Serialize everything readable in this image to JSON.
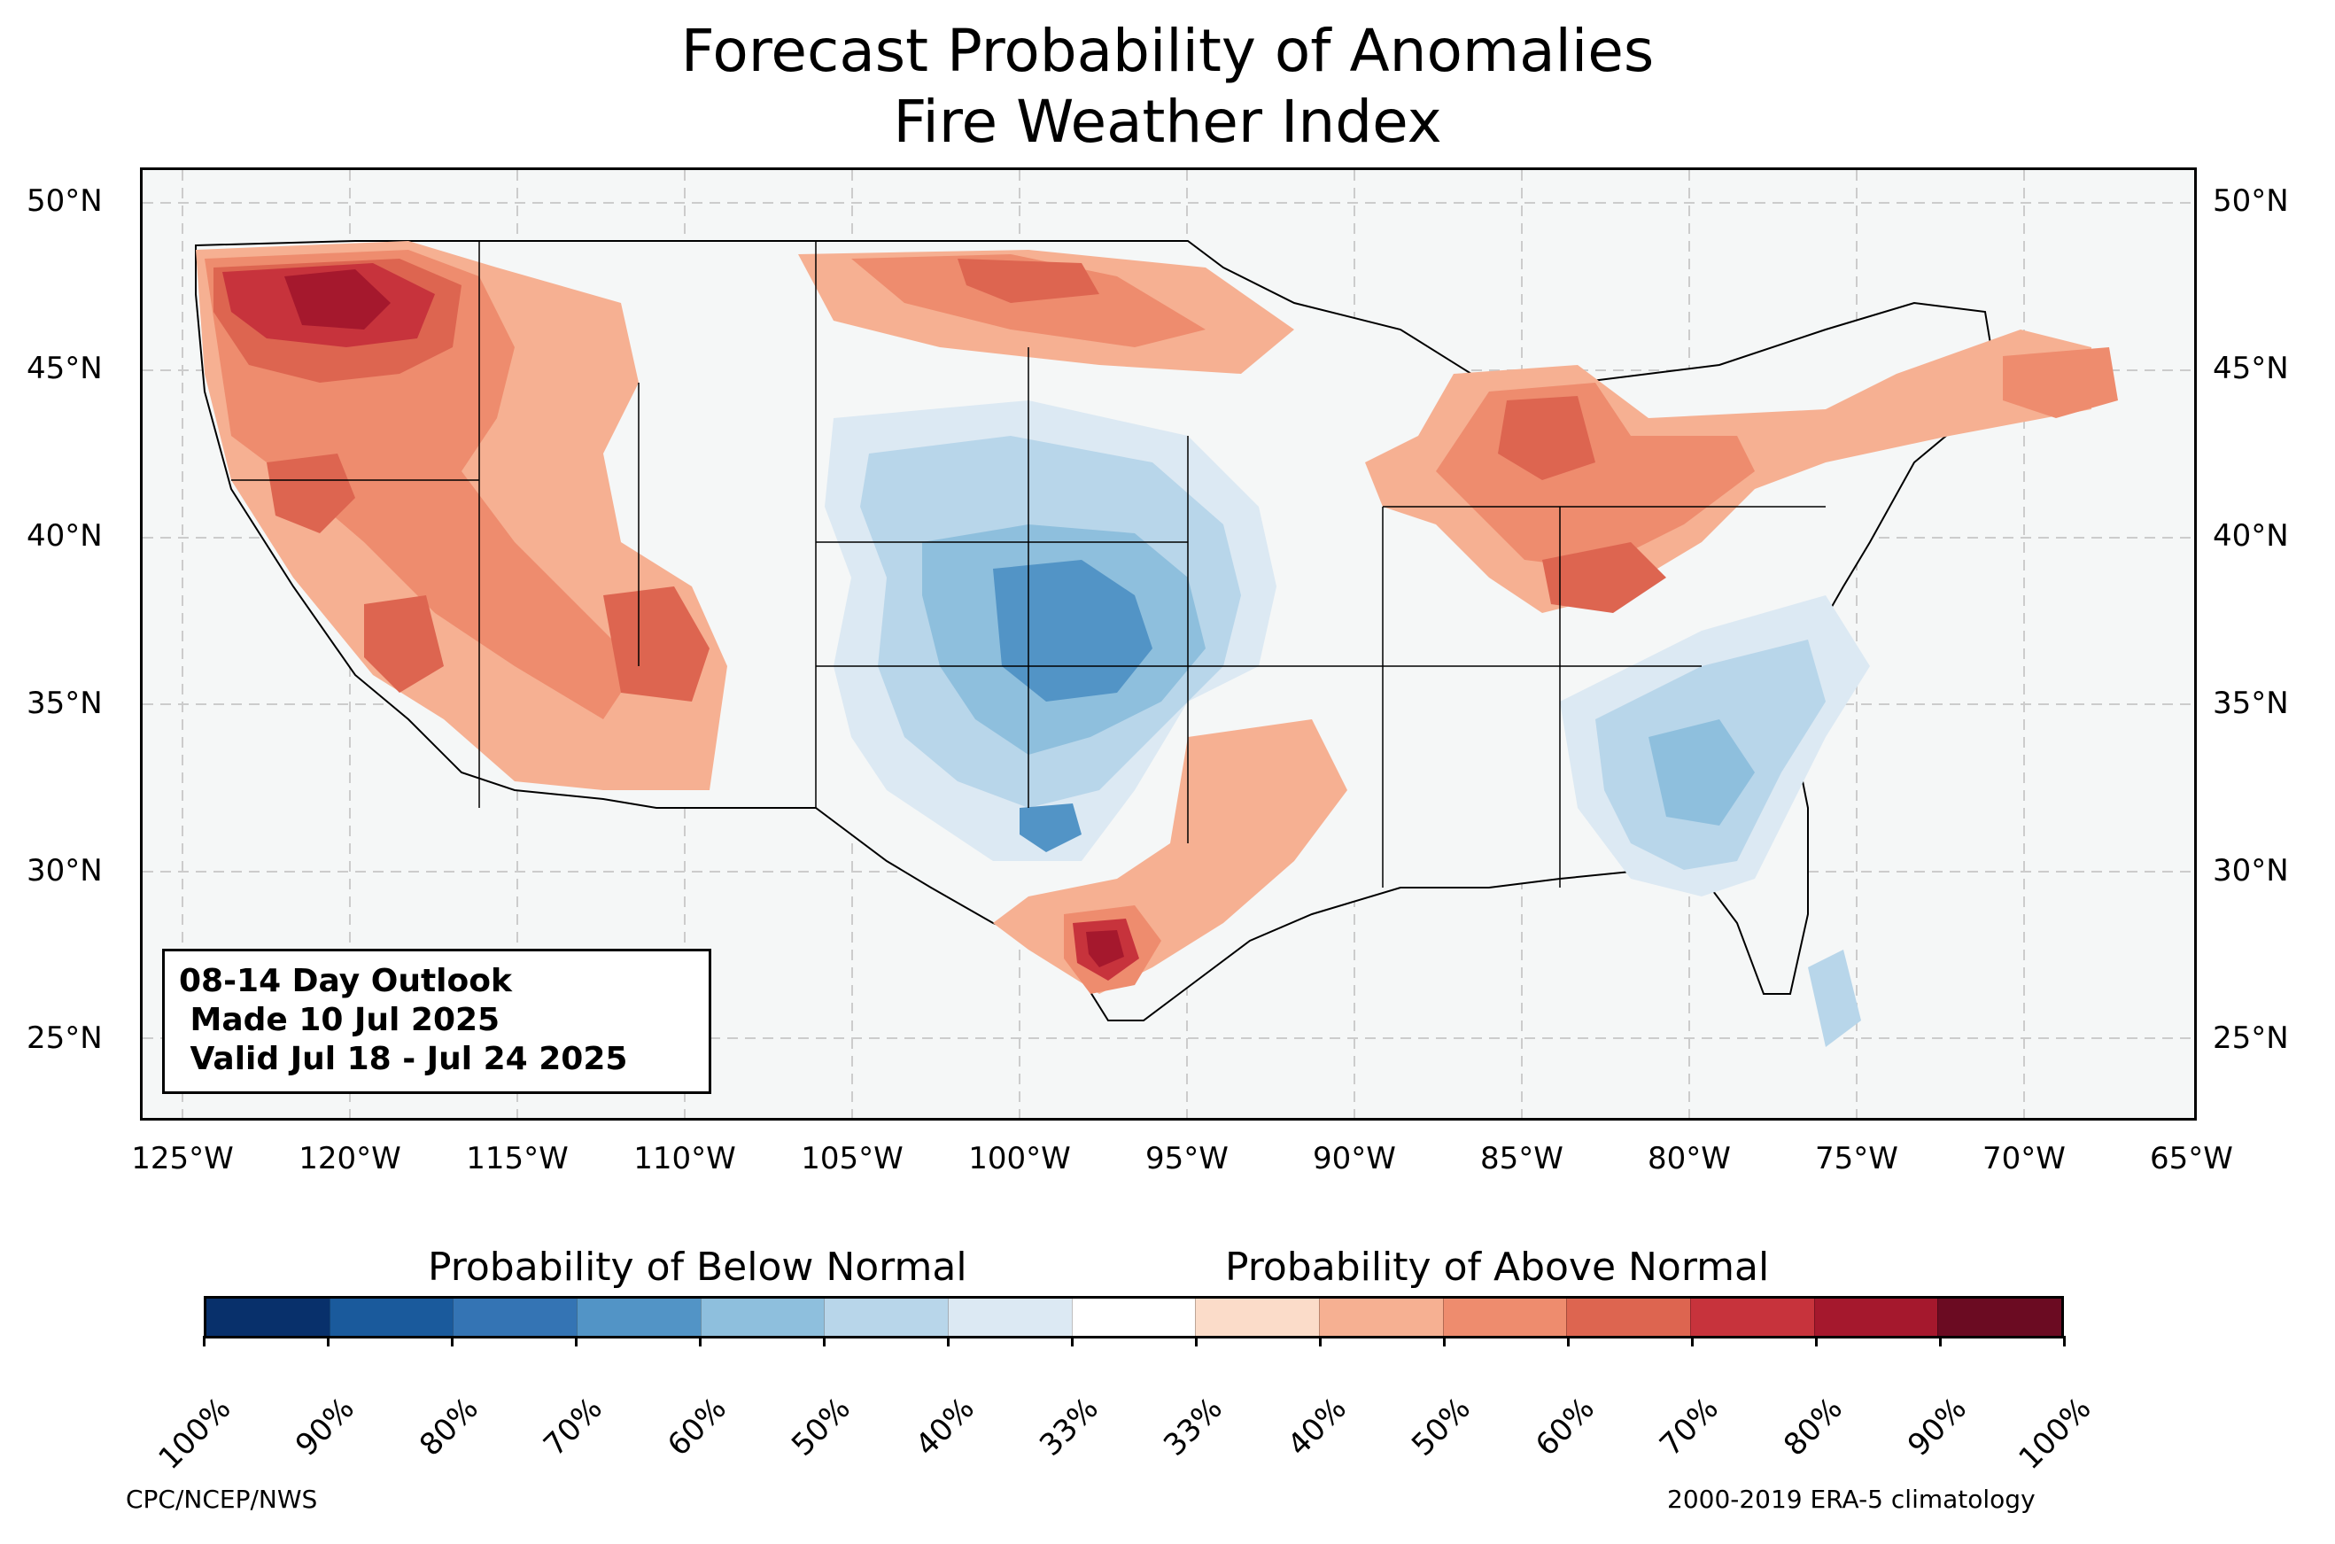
{
  "title": {
    "line1": "Forecast Probability of Anomalies",
    "line2": "Fire Weather Index"
  },
  "map": {
    "lat_labels": [
      "50°N",
      "45°N",
      "40°N",
      "35°N",
      "30°N",
      "25°N"
    ],
    "lon_labels": [
      "125°W",
      "120°W",
      "115°W",
      "110°W",
      "105°W",
      "100°W",
      "95°W",
      "90°W",
      "85°W",
      "80°W",
      "75°W",
      "70°W",
      "65°W"
    ],
    "background_color": "#f5f7f7",
    "gridlines": "dashed"
  },
  "outlook_box": {
    "line1": "08-14 Day Outlook",
    "line2": " Made 10 Jul 2025",
    "line3": " Valid Jul 18 - Jul 24 2025"
  },
  "colorbar": {
    "below_label": "Probability of Below Normal",
    "above_label": "Probability of Above Normal",
    "tick_labels": [
      "100%",
      "90%",
      "80%",
      "70%",
      "60%",
      "50%",
      "40%",
      "33%",
      "33%",
      "40%",
      "50%",
      "60%",
      "70%",
      "80%",
      "90%",
      "100%"
    ],
    "colors": [
      "#08306b",
      "#1a5a9c",
      "#3474b4",
      "#5294c6",
      "#8ebfdd",
      "#b8d6ea",
      "#dce9f3",
      "#ffffff",
      "#fbdcc9",
      "#f6b092",
      "#ee8c6e",
      "#dd6550",
      "#c7333c",
      "#a5182d",
      "#6b0b22"
    ]
  },
  "footer": {
    "left": "CPC/NCEP/NWS",
    "right": "2000-2019 ERA-5 climatology"
  }
}
